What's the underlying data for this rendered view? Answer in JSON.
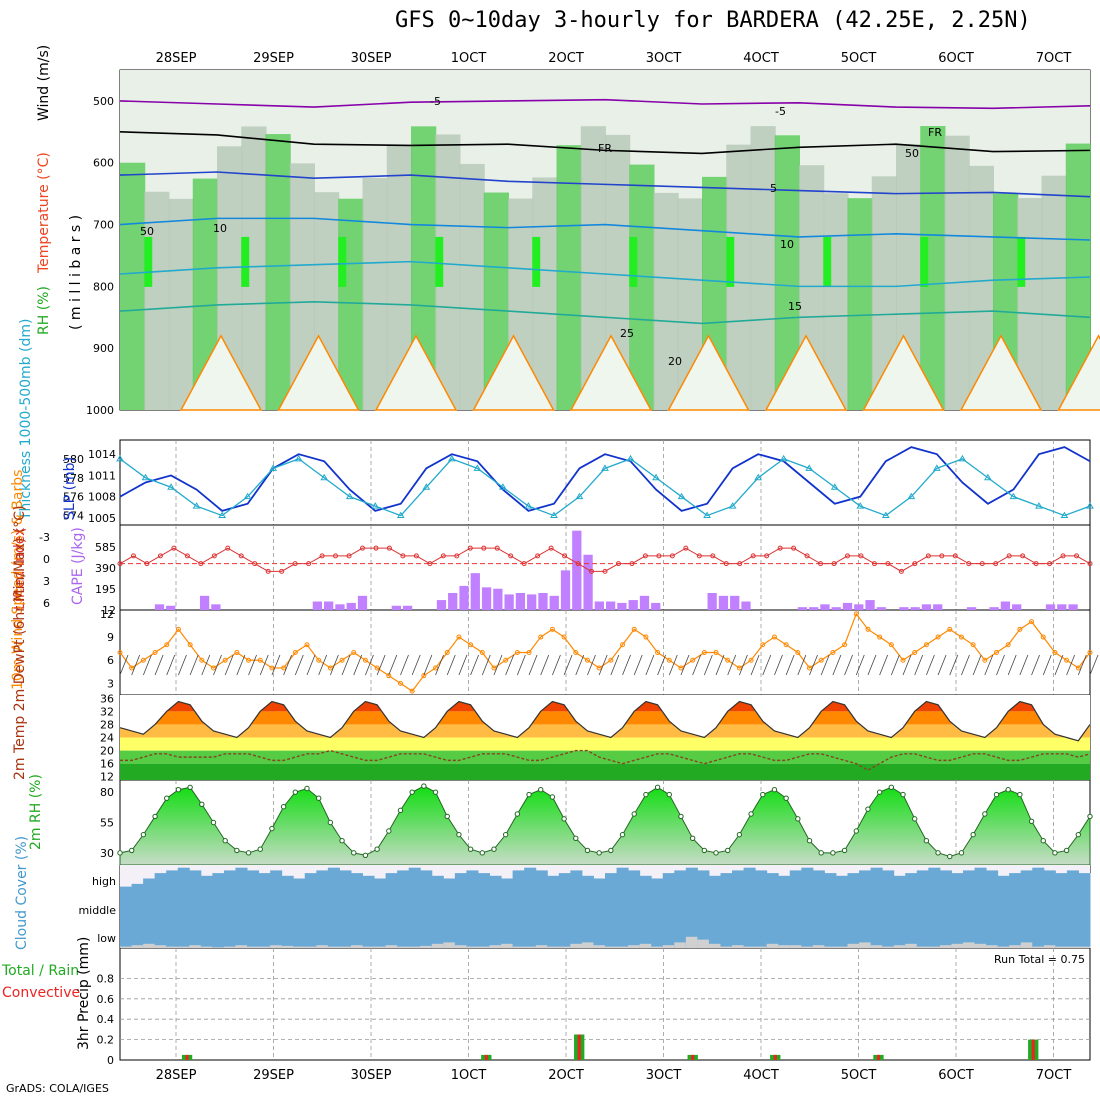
{
  "title": "GFS 0~10day 3-hourly for BARDERA (42.25E, 2.25N)",
  "footer": "GrADS: COLA/IGES",
  "date_labels": [
    "28SEP",
    "29SEP",
    "30SEP",
    "1OCT",
    "2OCT",
    "3OCT",
    "4OCT",
    "5OCT",
    "6OCT",
    "7OCT"
  ],
  "colors": {
    "grid": "#999999",
    "rh_green": "#33cc33",
    "temp_orange": "#ff8800",
    "cape_purple": "#c080ff",
    "cloud_blue": "#6aa9d6",
    "precip_green": "#22aa22",
    "precip_red": "#ee2222"
  },
  "chart_data": [
    {
      "type": "heatmap",
      "panel": "upper_air",
      "ylabel_parts": [
        "RH (%)",
        "Temperature (°C)",
        "Wind (m/s)"
      ],
      "ylabel2": "( m i l l i b a r s )",
      "y_ticks": [
        500,
        600,
        700,
        800,
        900,
        1000
      ],
      "ylim": [
        450,
        1000
      ],
      "contour_labels": [
        "-5",
        "-5",
        "FR",
        "FR",
        "5",
        "10",
        "10",
        "15",
        "20",
        "25",
        "50",
        "50"
      ],
      "isotherms": [
        {
          "name": "-5",
          "values": [
            500,
            505,
            510,
            502,
            500,
            498,
            505,
            503,
            510,
            512,
            508
          ]
        },
        {
          "name": "FR",
          "values": [
            550,
            555,
            570,
            572,
            570,
            580,
            585,
            575,
            570,
            582,
            580
          ]
        },
        {
          "name": "5",
          "values": [
            620,
            615,
            625,
            620,
            630,
            635,
            640,
            645,
            650,
            648,
            655
          ]
        },
        {
          "name": "10",
          "values": [
            700,
            690,
            690,
            700,
            705,
            700,
            710,
            720,
            715,
            720,
            725
          ]
        },
        {
          "name": "15",
          "values": [
            780,
            770,
            765,
            760,
            770,
            780,
            790,
            800,
            800,
            790,
            785
          ]
        },
        {
          "name": "20",
          "values": [
            840,
            830,
            825,
            830,
            840,
            850,
            860,
            850,
            845,
            840,
            850
          ]
        }
      ]
    },
    {
      "type": "line",
      "panel": "thickness_slp",
      "ylabel_left": "Thickness 1000-500mb (dm)",
      "ylabel_right": "SLP (mb)",
      "y_ticks_thickness": [
        574,
        576,
        578,
        580
      ],
      "y_ticks_slp": [
        1005,
        1008,
        1011,
        1014
      ],
      "series": [
        {
          "name": "SLP",
          "values": [
            1008,
            1010,
            1011,
            1009,
            1006,
            1007,
            1012,
            1014,
            1013,
            1009,
            1006,
            1007,
            1012,
            1014,
            1013,
            1009,
            1006,
            1007,
            1012,
            1014,
            1013,
            1009,
            1006,
            1007,
            1012,
            1014,
            1013,
            1010,
            1007,
            1008,
            1013,
            1015,
            1014,
            1010,
            1007,
            1009,
            1014,
            1015,
            1013
          ]
        },
        {
          "name": "Thickness",
          "values": [
            580,
            578,
            577,
            575,
            574,
            576,
            579,
            580,
            578,
            576,
            575,
            574,
            577,
            580,
            579,
            577,
            575,
            574,
            576,
            579,
            580,
            578,
            576,
            574,
            575,
            578,
            580,
            579,
            577,
            575,
            574,
            576,
            579,
            580,
            578,
            576,
            575,
            574,
            575
          ]
        }
      ]
    },
    {
      "type": "bar",
      "panel": "cape_li",
      "ylabel_left": "Lifted Index",
      "ylabel_right": "CAPE (J/kg)",
      "y_ticks_li": [
        "-3",
        "0",
        "3",
        "6"
      ],
      "y_ticks_cape": [
        "585",
        "390",
        "195",
        "12"
      ],
      "series": [
        {
          "name": "CAPE",
          "values": [
            12,
            12,
            12,
            40,
            30,
            12,
            12,
            100,
            40,
            12,
            12,
            12,
            12,
            12,
            12,
            12,
            12,
            60,
            60,
            40,
            50,
            100,
            12,
            12,
            30,
            30,
            12,
            12,
            70,
            120,
            170,
            260,
            160,
            150,
            110,
            120,
            110,
            120,
            100,
            280,
            560,
            390,
            60,
            60,
            50,
            70,
            100,
            50,
            12,
            12,
            12,
            12,
            120,
            100,
            100,
            60,
            12,
            12,
            12,
            12,
            20,
            20,
            40,
            20,
            50,
            40,
            70,
            20,
            12,
            20,
            20,
            40,
            40,
            12,
            12,
            20,
            12,
            20,
            60,
            40,
            12,
            12,
            40,
            40,
            40,
            12
          ]
        },
        {
          "name": "Lifted Index",
          "values": [
            0,
            -1,
            0,
            -1,
            -2,
            -1,
            0,
            -1,
            -2,
            -1,
            0,
            1,
            1,
            0,
            0,
            -1,
            -1,
            -1,
            -2,
            -2,
            -2,
            -1,
            -1,
            0,
            -1,
            -1,
            -2,
            -2,
            -2,
            -1,
            0,
            -1,
            -2,
            -1,
            0,
            1,
            1,
            0,
            0,
            -1,
            -1,
            -1,
            -2,
            -1,
            -1,
            0,
            0,
            -1,
            -1,
            -2,
            -2,
            -1,
            0,
            0,
            -1,
            -1,
            0,
            0,
            1,
            0,
            -1,
            -1,
            -1,
            0,
            0,
            0,
            -1,
            -1,
            0,
            0,
            -1,
            -1,
            0
          ]
        }
      ]
    },
    {
      "type": "line",
      "panel": "wind10m",
      "ylabel": "10m Wind Speed (m/s) & Barbs",
      "y_ticks": [
        3,
        6,
        9,
        12
      ],
      "values": [
        7,
        5,
        6,
        7,
        8,
        10,
        8,
        6,
        5,
        6,
        7,
        6,
        6,
        5,
        5,
        7,
        8,
        6,
        5,
        6,
        7,
        6,
        5,
        4,
        3,
        2,
        4,
        5,
        7,
        9,
        8,
        7,
        5,
        6,
        7,
        7,
        9,
        10,
        9,
        7,
        6,
        5,
        6,
        8,
        10,
        9,
        7,
        6,
        5,
        6,
        7,
        7,
        6,
        5,
        6,
        8,
        9,
        8,
        7,
        5,
        6,
        7,
        8,
        12,
        10,
        9,
        8,
        6,
        7,
        8,
        9,
        10,
        9,
        8,
        6,
        7,
        8,
        10,
        11,
        9,
        7,
        6,
        5,
        7
      ]
    },
    {
      "type": "area",
      "panel": "temp2m",
      "ylabel": "2m Temp 2m DewPt (6hr Min/Max) (°C)",
      "y_ticks": [
        12,
        16,
        20,
        24,
        28,
        32,
        36
      ],
      "series": [
        {
          "name": "2m Temp",
          "values": [
            27,
            26,
            25,
            28,
            32,
            35,
            34,
            29,
            26,
            25,
            24,
            27,
            32,
            35,
            34,
            29,
            26,
            25,
            24,
            27,
            32,
            35,
            34,
            29,
            26,
            25,
            24,
            27,
            32,
            35,
            34,
            29,
            26,
            25,
            24,
            27,
            32,
            35,
            34,
            29,
            26,
            25,
            24,
            27,
            32,
            35,
            34,
            29,
            26,
            25,
            24,
            27,
            32,
            35,
            34,
            29,
            26,
            25,
            24,
            27,
            32,
            35,
            34,
            29,
            26,
            25,
            24,
            27,
            32,
            35,
            34,
            29,
            26,
            25,
            24,
            27,
            32,
            35,
            34,
            28,
            25,
            24,
            23,
            28
          ]
        },
        {
          "name": "2m DewPt",
          "values": [
            17,
            17,
            18,
            19,
            19,
            18,
            18,
            18,
            18,
            19,
            19,
            19,
            18,
            17,
            17,
            18,
            19,
            19,
            20,
            19,
            18,
            17,
            17,
            18,
            19,
            19,
            19,
            18,
            17,
            17,
            18,
            19,
            19,
            19,
            18,
            17,
            17,
            18,
            19,
            20,
            20,
            18,
            17,
            16,
            17,
            18,
            19,
            19,
            18,
            17,
            16,
            17,
            18,
            19,
            19,
            18,
            17,
            17,
            18,
            19,
            19,
            18,
            17,
            16,
            14,
            16,
            18,
            19,
            19,
            18,
            17,
            17,
            18,
            19,
            19,
            18,
            17,
            17,
            18,
            19,
            19,
            19,
            18,
            19
          ]
        }
      ]
    },
    {
      "type": "area",
      "panel": "rh2m",
      "ylabel": "2m RH (%)",
      "y_ticks": [
        30,
        55,
        80
      ],
      "values": [
        30,
        32,
        45,
        60,
        75,
        82,
        84,
        70,
        55,
        40,
        32,
        30,
        33,
        50,
        68,
        80,
        83,
        75,
        55,
        40,
        30,
        28,
        33,
        48,
        65,
        80,
        85,
        80,
        60,
        45,
        33,
        30,
        33,
        45,
        62,
        78,
        82,
        76,
        58,
        42,
        32,
        30,
        32,
        45,
        62,
        78,
        84,
        78,
        60,
        42,
        32,
        30,
        32,
        45,
        62,
        78,
        82,
        75,
        58,
        40,
        30,
        30,
        32,
        48,
        66,
        80,
        84,
        78,
        58,
        40,
        30,
        27,
        30,
        45,
        62,
        78,
        82,
        78,
        56,
        40,
        30,
        32,
        45,
        60
      ]
    },
    {
      "type": "bar",
      "panel": "cloud_cover",
      "ylabel": "Cloud Cover (%)",
      "levels": [
        "high",
        "middle",
        "low"
      ],
      "series": [
        {
          "name": "high",
          "values": [
            20,
            30,
            50,
            70,
            80,
            90,
            80,
            60,
            70,
            80,
            90,
            80,
            70,
            80,
            60,
            50,
            70,
            80,
            90,
            80,
            70,
            60,
            50,
            70,
            80,
            90,
            80,
            60,
            50,
            70,
            80,
            70,
            60,
            50,
            80,
            90,
            80,
            60,
            70,
            80,
            60,
            50,
            70,
            90,
            80,
            60,
            50,
            70,
            80,
            90,
            80,
            60,
            70,
            80,
            90,
            80,
            70,
            60,
            80,
            90,
            80,
            70,
            60,
            70,
            80,
            90,
            80,
            60,
            70,
            80,
            90,
            80,
            70,
            80,
            90,
            80,
            60,
            70,
            80,
            90,
            80,
            70,
            80,
            70
          ]
        },
        {
          "name": "middle",
          "values": [
            0,
            0,
            0,
            0,
            0,
            0,
            0,
            0,
            0,
            0,
            0,
            0,
            0,
            0,
            0,
            0,
            0,
            0,
            0,
            0,
            0,
            0,
            0,
            0,
            0,
            0,
            0,
            0,
            0,
            0,
            0,
            0,
            0,
            0,
            0,
            0,
            0,
            0,
            0,
            0,
            0,
            0,
            0,
            0,
            0,
            0,
            0,
            0,
            0,
            0,
            0,
            0,
            0,
            0,
            0,
            0,
            0,
            0,
            0,
            0,
            0,
            0,
            0,
            0,
            0,
            0,
            0,
            0,
            0,
            0,
            0,
            0,
            0,
            0,
            0,
            0,
            0,
            0,
            0,
            0,
            0,
            0,
            0,
            0
          ]
        },
        {
          "name": "low",
          "values": [
            10,
            20,
            30,
            20,
            10,
            10,
            20,
            10,
            5,
            10,
            20,
            10,
            10,
            20,
            15,
            10,
            10,
            20,
            10,
            10,
            20,
            10,
            10,
            20,
            10,
            10,
            15,
            30,
            40,
            20,
            10,
            10,
            20,
            30,
            10,
            10,
            20,
            10,
            10,
            30,
            40,
            20,
            10,
            10,
            20,
            30,
            10,
            20,
            40,
            80,
            60,
            30,
            10,
            20,
            10,
            10,
            30,
            20,
            20,
            10,
            20,
            10,
            10,
            30,
            40,
            20,
            10,
            20,
            30,
            10,
            10,
            20,
            30,
            40,
            30,
            20,
            10,
            20,
            40,
            10,
            20,
            10,
            10,
            10
          ]
        }
      ]
    },
    {
      "type": "bar",
      "panel": "precip",
      "ylabel_parts": [
        "Total / Rain",
        "Convective",
        "3hr Precip (mm)"
      ],
      "y_ticks": [
        "0",
        "0.2",
        "0.4",
        "0.6",
        "0.8"
      ],
      "ylim": [
        0,
        1
      ],
      "annotation": "Run Total = 0.75",
      "series": [
        {
          "name": "Total",
          "values": [
            0,
            0,
            0,
            0,
            0,
            0,
            0.05,
            0,
            0,
            0,
            0,
            0,
            0,
            0,
            0,
            0,
            0,
            0,
            0,
            0,
            0,
            0,
            0,
            0,
            0,
            0,
            0,
            0,
            0,
            0,
            0,
            0,
            0,
            0,
            0,
            0.05,
            0,
            0,
            0,
            0,
            0,
            0,
            0,
            0,
            0.25,
            0,
            0,
            0,
            0,
            0,
            0,
            0,
            0,
            0,
            0,
            0.05,
            0,
            0,
            0,
            0,
            0,
            0,
            0,
            0.05,
            0,
            0,
            0,
            0,
            0,
            0,
            0,
            0,
            0,
            0.05,
            0,
            0,
            0,
            0,
            0,
            0,
            0,
            0,
            0,
            0,
            0,
            0,
            0,
            0,
            0.2,
            0,
            0,
            0,
            0,
            0
          ]
        }
      ]
    }
  ]
}
